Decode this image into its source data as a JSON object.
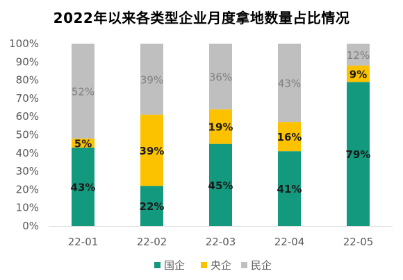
{
  "chart_data": {
    "type": "bar",
    "stacked": true,
    "title": "2022年以来各类型企业月度拿地数量占比情况",
    "xlabel": "",
    "ylabel": "",
    "categories": [
      "22-01",
      "22-02",
      "22-03",
      "22-04",
      "22-05"
    ],
    "ylim": [
      0,
      100
    ],
    "yticks": [
      "0%",
      "10%",
      "20%",
      "30%",
      "40%",
      "50%",
      "60%",
      "70%",
      "80%",
      "90%",
      "100%"
    ],
    "grid": false,
    "legend_position": "bottom",
    "series": [
      {
        "name": "国企",
        "color": "#139A7E",
        "values": [
          43,
          22,
          45,
          41,
          79
        ],
        "labels": [
          "43%",
          "22%",
          "45%",
          "41%",
          "79%"
        ],
        "label_style": "bold-dark"
      },
      {
        "name": "央企",
        "color": "#FCC200",
        "values": [
          5,
          39,
          19,
          16,
          9
        ],
        "labels": [
          "5%",
          "39%",
          "19%",
          "16%",
          "9%"
        ],
        "label_style": "bold-dark"
      },
      {
        "name": "民企",
        "color": "#BFBFBF",
        "values": [
          52,
          39,
          36,
          43,
          12
        ],
        "labels": [
          "52%",
          "39%",
          "36%",
          "43%",
          "12%"
        ],
        "label_style": "gray"
      }
    ]
  }
}
